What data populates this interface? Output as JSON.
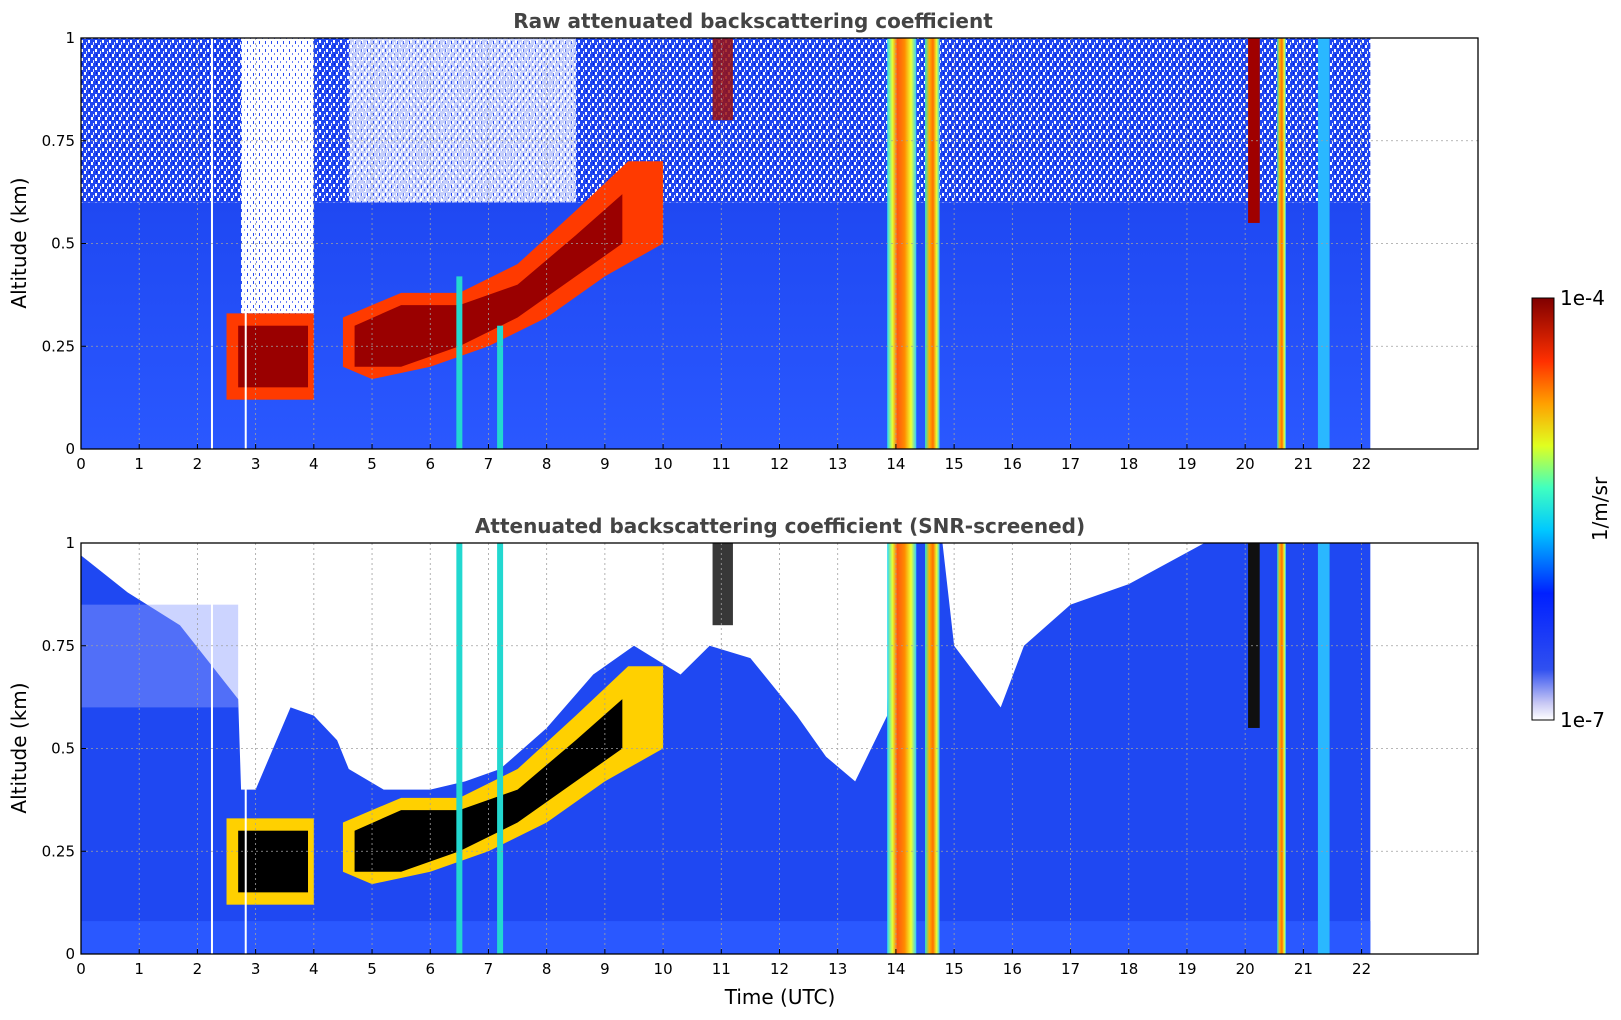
{
  "chart_data": [
    {
      "type": "heatmap",
      "title": "Raw attenuated backscattering coefficient",
      "xlabel": "",
      "ylabel": "Altitude (km)",
      "xlim": [
        0,
        24
      ],
      "ylim": [
        0,
        1
      ],
      "x_ticks": [
        "0",
        "1",
        "2",
        "3",
        "4",
        "5",
        "6",
        "7",
        "8",
        "9",
        "10",
        "11",
        "12",
        "13",
        "14",
        "15",
        "16",
        "17",
        "18",
        "19",
        "20",
        "21",
        "22"
      ],
      "y_ticks": [
        "0",
        "0.25",
        "0.5",
        "0.75",
        "1"
      ],
      "grid": true,
      "data_end_time": 22.15,
      "features": {
        "cloud_layers": [
          {
            "time_start": 2.5,
            "time_end": 4.0,
            "base": 0.12,
            "top": 0.33
          },
          {
            "time_start": 4.5,
            "time_end": 10.0,
            "base_start": 0.17,
            "base_end": 0.5,
            "top_start": 0.32,
            "top_end": 0.7
          }
        ],
        "precipitation_columns": [
          {
            "time_start": 13.85,
            "time_end": 14.35
          },
          {
            "time_start": 14.5,
            "time_end": 14.75
          },
          {
            "time_start": 20.55,
            "time_end": 20.7
          }
        ]
      }
    },
    {
      "type": "heatmap",
      "title": "Attenuated backscattering coefficient (SNR-screened)",
      "xlabel": "Time (UTC)",
      "ylabel": "Altitude (km)",
      "xlim": [
        0,
        24
      ],
      "ylim": [
        0,
        1
      ],
      "x_ticks": [
        "0",
        "1",
        "2",
        "3",
        "4",
        "5",
        "6",
        "7",
        "8",
        "9",
        "10",
        "11",
        "12",
        "13",
        "14",
        "15",
        "16",
        "17",
        "18",
        "19",
        "20",
        "21",
        "22"
      ],
      "y_ticks": [
        "0",
        "0.25",
        "0.5",
        "0.75",
        "1"
      ],
      "grid": true,
      "data_end_time": 22.15,
      "colorbar": {
        "label": "1/m/sr",
        "max_label": "1e-4",
        "min_label": "1e-7",
        "scale": "log",
        "colormap": "jet"
      }
    }
  ]
}
